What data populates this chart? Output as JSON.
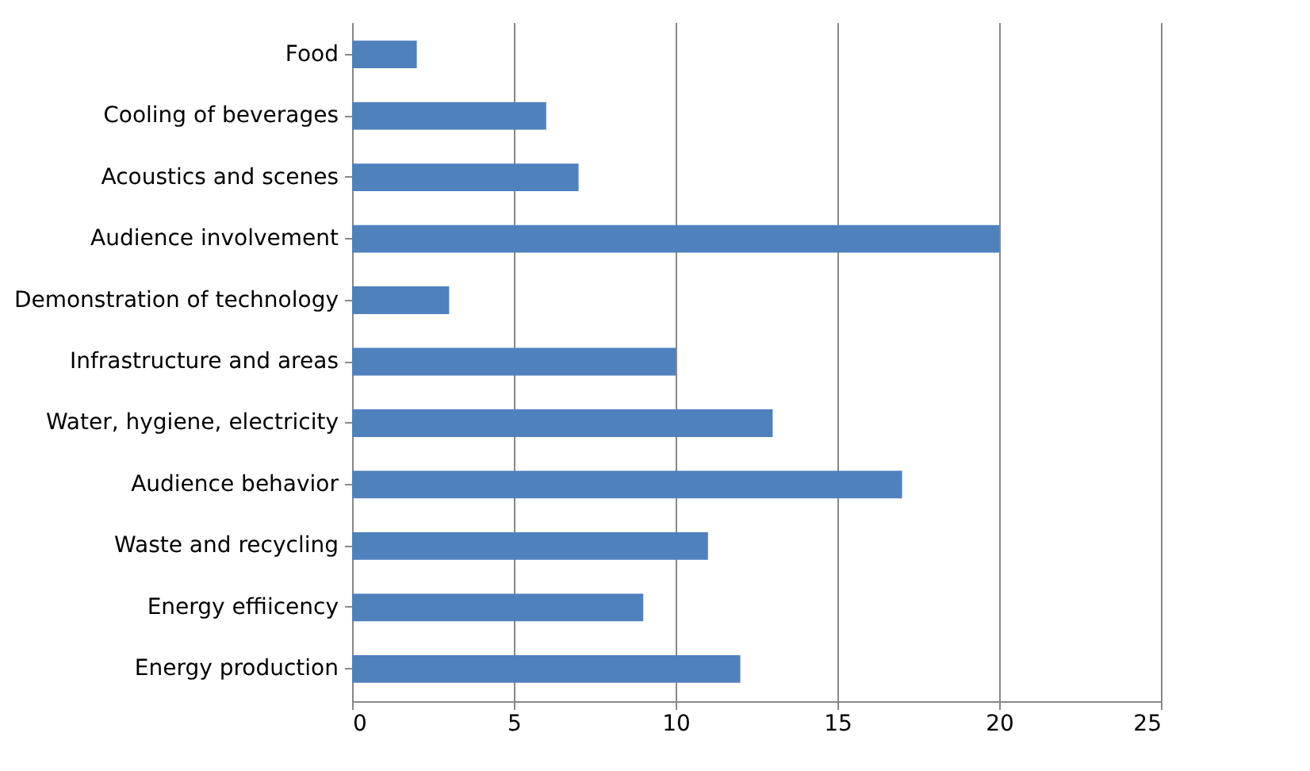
{
  "chart_data": {
    "type": "bar",
    "orientation": "horizontal",
    "categories": [
      "Food",
      "Cooling of beverages",
      "Acoustics and scenes",
      "Audience involvement",
      "Demonstration of technology",
      "Infrastructure and areas",
      "Water, hygiene, electricity",
      "Audience behavior",
      "Waste and recycling",
      "Energy effiicency",
      "Energy production"
    ],
    "values": [
      2,
      6,
      7,
      20,
      3,
      10,
      13,
      17,
      11,
      9,
      12
    ],
    "color": "#4f81bd",
    "xlim": [
      0,
      25
    ],
    "xticks": [
      0,
      5,
      10,
      15,
      20,
      25
    ],
    "grid": "x"
  }
}
